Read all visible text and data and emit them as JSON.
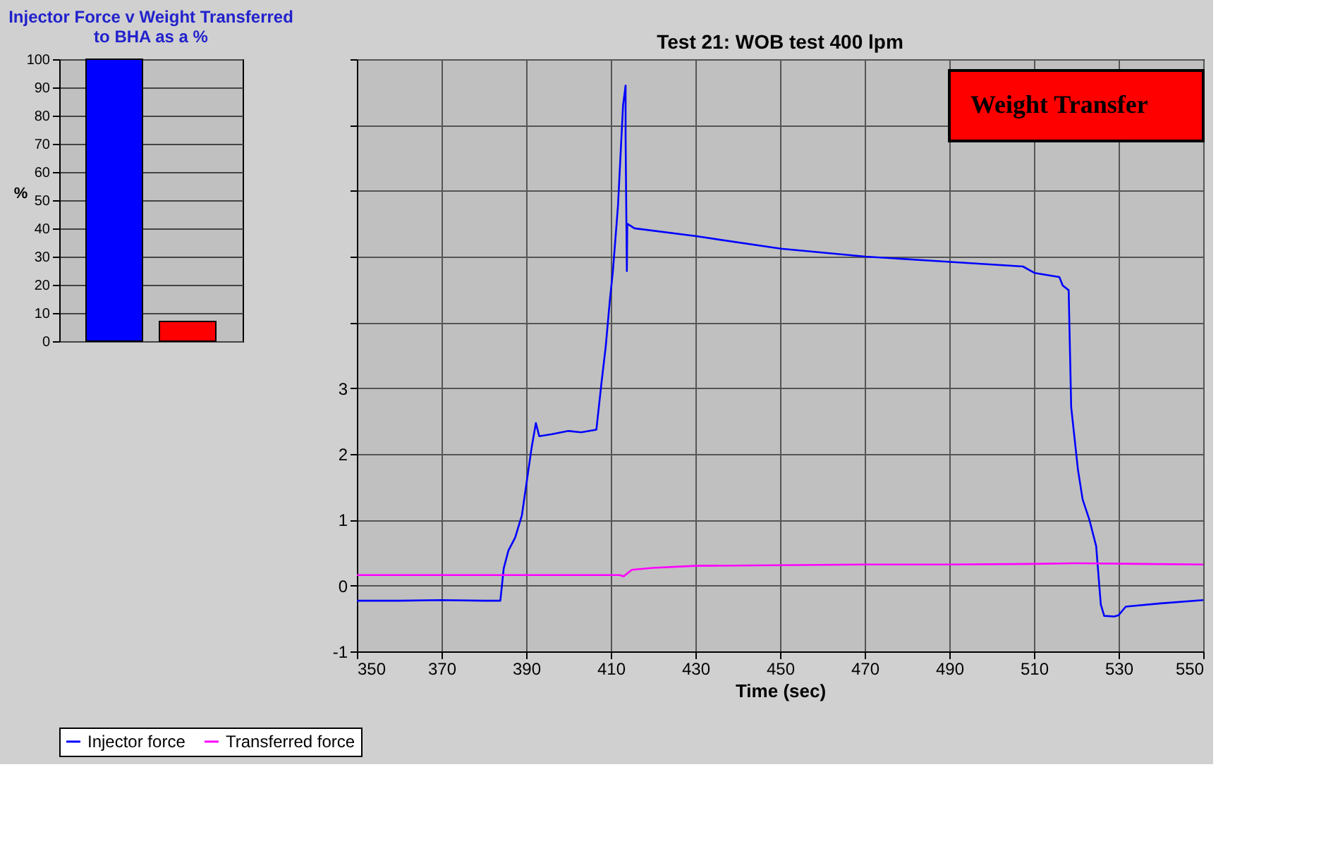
{
  "chart_data": [
    {
      "type": "line",
      "title": "Test 21: WOB test 400 lpm",
      "xlabel": "Time (sec)",
      "xlim": [
        350,
        550
      ],
      "xticks": [
        350,
        370,
        390,
        410,
        430,
        450,
        470,
        490,
        510,
        530,
        550
      ],
      "ylim": [
        -1,
        8
      ],
      "yticks": [
        -1,
        0,
        1,
        2,
        3,
        {
          "value": 4,
          "label": null
        },
        {
          "value": 5,
          "label": null
        },
        {
          "value": 6,
          "label": null
        },
        {
          "value": 7,
          "label": null
        },
        {
          "value": 8,
          "label": null
        }
      ],
      "grid": true,
      "legend": "bottom",
      "annotations": [
        "Weight Transfer"
      ],
      "series": [
        {
          "name": "Injector force",
          "color": "#0000ff",
          "x": [
            350,
            360,
            370,
            380,
            383.9,
            384.7,
            385.8,
            387.4,
            389.0,
            391.3,
            392.3,
            393.1,
            396,
            400,
            403,
            406.6,
            407.8,
            408.8,
            409.8,
            410.5,
            411.7,
            412.9,
            413.5,
            413.5,
            413.8,
            413.9,
            415.6,
            430.2,
            450.2,
            470.2,
            490.2,
            507.4,
            510.2,
            516.0,
            516.8,
            518.2,
            518.8,
            520.4,
            521.5,
            523.1,
            524.7,
            525.8,
            526.6,
            529,
            530,
            531.7,
            540,
            550
          ],
          "values": [
            -0.23,
            -0.23,
            -0.22,
            -0.23,
            -0.23,
            0.26,
            0.53,
            0.73,
            1.07,
            2.1,
            2.47,
            2.27,
            2.3,
            2.35,
            2.33,
            2.37,
            3.08,
            3.63,
            4.35,
            4.78,
            5.77,
            7.3,
            7.6,
            6.82,
            4.78,
            5.5,
            5.43,
            5.31,
            5.12,
            5.0,
            4.92,
            4.85,
            4.75,
            4.69,
            4.56,
            4.49,
            2.71,
            1.76,
            1.31,
            1.0,
            0.6,
            -0.29,
            -0.46,
            -0.47,
            -0.45,
            -0.32,
            -0.27,
            -0.22
          ]
        },
        {
          "name": "Transferred force",
          "color": "#ff00ff",
          "x": [
            350,
            380,
            412.1,
            413,
            415,
            420,
            430,
            450,
            470,
            490,
            510,
            520,
            535,
            550
          ],
          "values": [
            0.16,
            0.16,
            0.16,
            0.14,
            0.24,
            0.27,
            0.3,
            0.31,
            0.32,
            0.32,
            0.33,
            0.34,
            0.33,
            0.32
          ]
        }
      ]
    },
    {
      "type": "bar",
      "title": "Injector Force v Weight Transferred to BHA as a %",
      "ylabel": "%",
      "categories": [
        null,
        null
      ],
      "values": [
        100,
        7
      ],
      "colors": [
        "#0000ff",
        "#ff0000"
      ],
      "ylim": [
        0,
        100
      ],
      "yticks": [
        0,
        10,
        20,
        30,
        40,
        50,
        60,
        70,
        80,
        90,
        100
      ],
      "grid": "y",
      "tick_labels": "y"
    }
  ]
}
